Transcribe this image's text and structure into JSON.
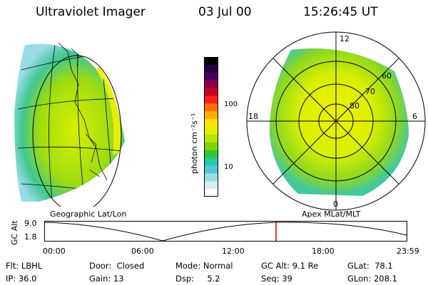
{
  "header": {
    "title": "Ultraviolet Imager",
    "date": "03 Jul 00",
    "time": "15:26:45 UT"
  },
  "colorbar": {
    "ticks": [
      "100",
      "10"
    ],
    "unit_label": "photon cm⁻²s⁻¹",
    "colors": [
      "#000000",
      "#220044",
      "#4b005e",
      "#8b004f",
      "#c8001e",
      "#ff2020",
      "#ff7000",
      "#ffb000",
      "#ffe600",
      "#e2f000",
      "#b4e600",
      "#7fd600",
      "#2ec832",
      "#28c8a8",
      "#50c8d8",
      "#9adbe8",
      "#d6ecf0",
      "#ffffff"
    ]
  },
  "left_image": {
    "label": "Geographic Lat/Lon"
  },
  "right_image": {
    "label": "Apex MLat/MLT",
    "hours": [
      "12",
      "18",
      "6",
      "0"
    ],
    "lats": [
      "60",
      "70",
      "80"
    ]
  },
  "altitude_plot": {
    "axis_label": "GC Alt",
    "y_ticks": [
      "9.0",
      "1.8"
    ],
    "x_ticks": [
      "00:00",
      "06:00",
      "12:00",
      "18:00",
      "23:59"
    ],
    "current_marker_color": "#e00000"
  },
  "status": {
    "filter_label": "Flt:",
    "filter_value": "LBHL",
    "door_label": "Door:",
    "door_value": "Closed",
    "mode_label": "Mode:",
    "mode_value": "Normal",
    "gcalt_label": "GC Alt:",
    "gcalt_value": "9.1 Re",
    "glat_label": "GLat:",
    "glat_value": "78.1",
    "ip_label": "IP:",
    "ip_value": "36.0",
    "gain_label": "Gain:",
    "gain_value": "13",
    "dsp_label": "Dsp:",
    "dsp_value": "5.2",
    "seq_label": "Seq:",
    "seq_value": "39",
    "glon_label": "GLon:",
    "glon_value": "208.1"
  }
}
